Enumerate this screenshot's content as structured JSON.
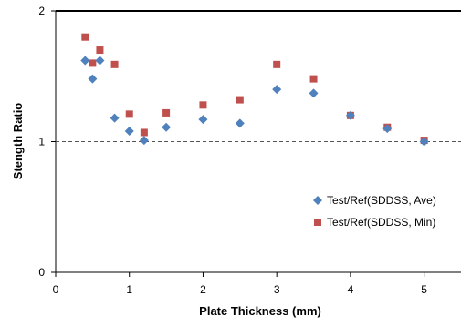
{
  "chart_data": {
    "type": "scatter",
    "xlabel": "Plate Thickness (mm)",
    "ylabel": "Stength Ratio",
    "xlim": [
      0,
      5.5
    ],
    "ylim": [
      0,
      2
    ],
    "xticks": [
      0,
      1,
      2,
      3,
      4,
      5
    ],
    "yticks": [
      0,
      1,
      2
    ],
    "xtick_labels": [
      "0",
      "1",
      "2",
      "3",
      "4",
      "5"
    ],
    "ytick_labels": [
      "0",
      "1",
      "2"
    ],
    "grid": false,
    "reference_line": {
      "y": 1,
      "style": "dashed"
    },
    "legend": {
      "placement": "lower-right"
    },
    "series": [
      {
        "name": "Test/Ref(SDDSS, Ave)",
        "marker": "diamond",
        "color": "#4F81BD",
        "points": [
          {
            "x": 0.4,
            "y": 1.62
          },
          {
            "x": 0.5,
            "y": 1.48
          },
          {
            "x": 0.6,
            "y": 1.62
          },
          {
            "x": 0.8,
            "y": 1.18
          },
          {
            "x": 1.0,
            "y": 1.08
          },
          {
            "x": 1.2,
            "y": 1.01
          },
          {
            "x": 1.5,
            "y": 1.11
          },
          {
            "x": 2.0,
            "y": 1.17
          },
          {
            "x": 2.5,
            "y": 1.14
          },
          {
            "x": 3.0,
            "y": 1.4
          },
          {
            "x": 3.5,
            "y": 1.37
          },
          {
            "x": 4.0,
            "y": 1.2
          },
          {
            "x": 4.5,
            "y": 1.1
          },
          {
            "x": 5.0,
            "y": 1.0
          }
        ]
      },
      {
        "name": "Test/Ref(SDDSS, Min)",
        "marker": "square",
        "color": "#C0504D",
        "points": [
          {
            "x": 0.4,
            "y": 1.8
          },
          {
            "x": 0.5,
            "y": 1.6
          },
          {
            "x": 0.6,
            "y": 1.7
          },
          {
            "x": 0.8,
            "y": 1.59
          },
          {
            "x": 1.0,
            "y": 1.21
          },
          {
            "x": 1.2,
            "y": 1.07
          },
          {
            "x": 1.5,
            "y": 1.22
          },
          {
            "x": 2.0,
            "y": 1.28
          },
          {
            "x": 2.5,
            "y": 1.32
          },
          {
            "x": 3.0,
            "y": 1.59
          },
          {
            "x": 3.5,
            "y": 1.48
          },
          {
            "x": 4.0,
            "y": 1.2
          },
          {
            "x": 4.5,
            "y": 1.11
          },
          {
            "x": 5.0,
            "y": 1.01
          }
        ]
      }
    ]
  }
}
